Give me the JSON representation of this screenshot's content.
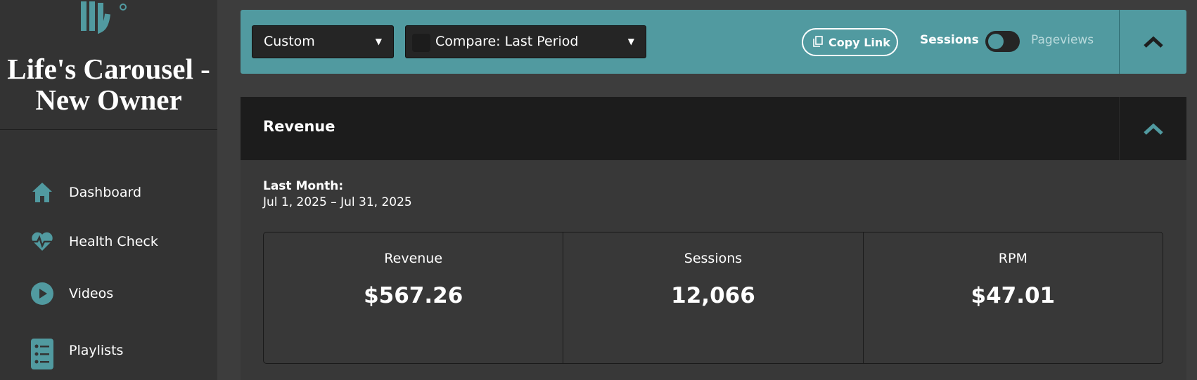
{
  "sidebar": {
    "site_title": "Life's Carousel - New Owner",
    "nav": [
      {
        "label": "Dashboard"
      },
      {
        "label": "Health Check"
      },
      {
        "label": "Videos"
      },
      {
        "label": "Playlists"
      }
    ]
  },
  "toolbar": {
    "date_range": "Custom",
    "compare": "Compare: Last Period",
    "copy_link": "Copy Link",
    "toggle_left": "Sessions",
    "toggle_right": "Pageviews"
  },
  "section": {
    "title": "Revenue",
    "period_label": "Last Month:",
    "period_dates": "Jul 1, 2025 – Jul 31, 2025",
    "metrics": [
      {
        "label": "Revenue",
        "value": "$567.26"
      },
      {
        "label": "Sessions",
        "value": "12,066"
      },
      {
        "label": "RPM",
        "value": "$47.01"
      }
    ]
  }
}
